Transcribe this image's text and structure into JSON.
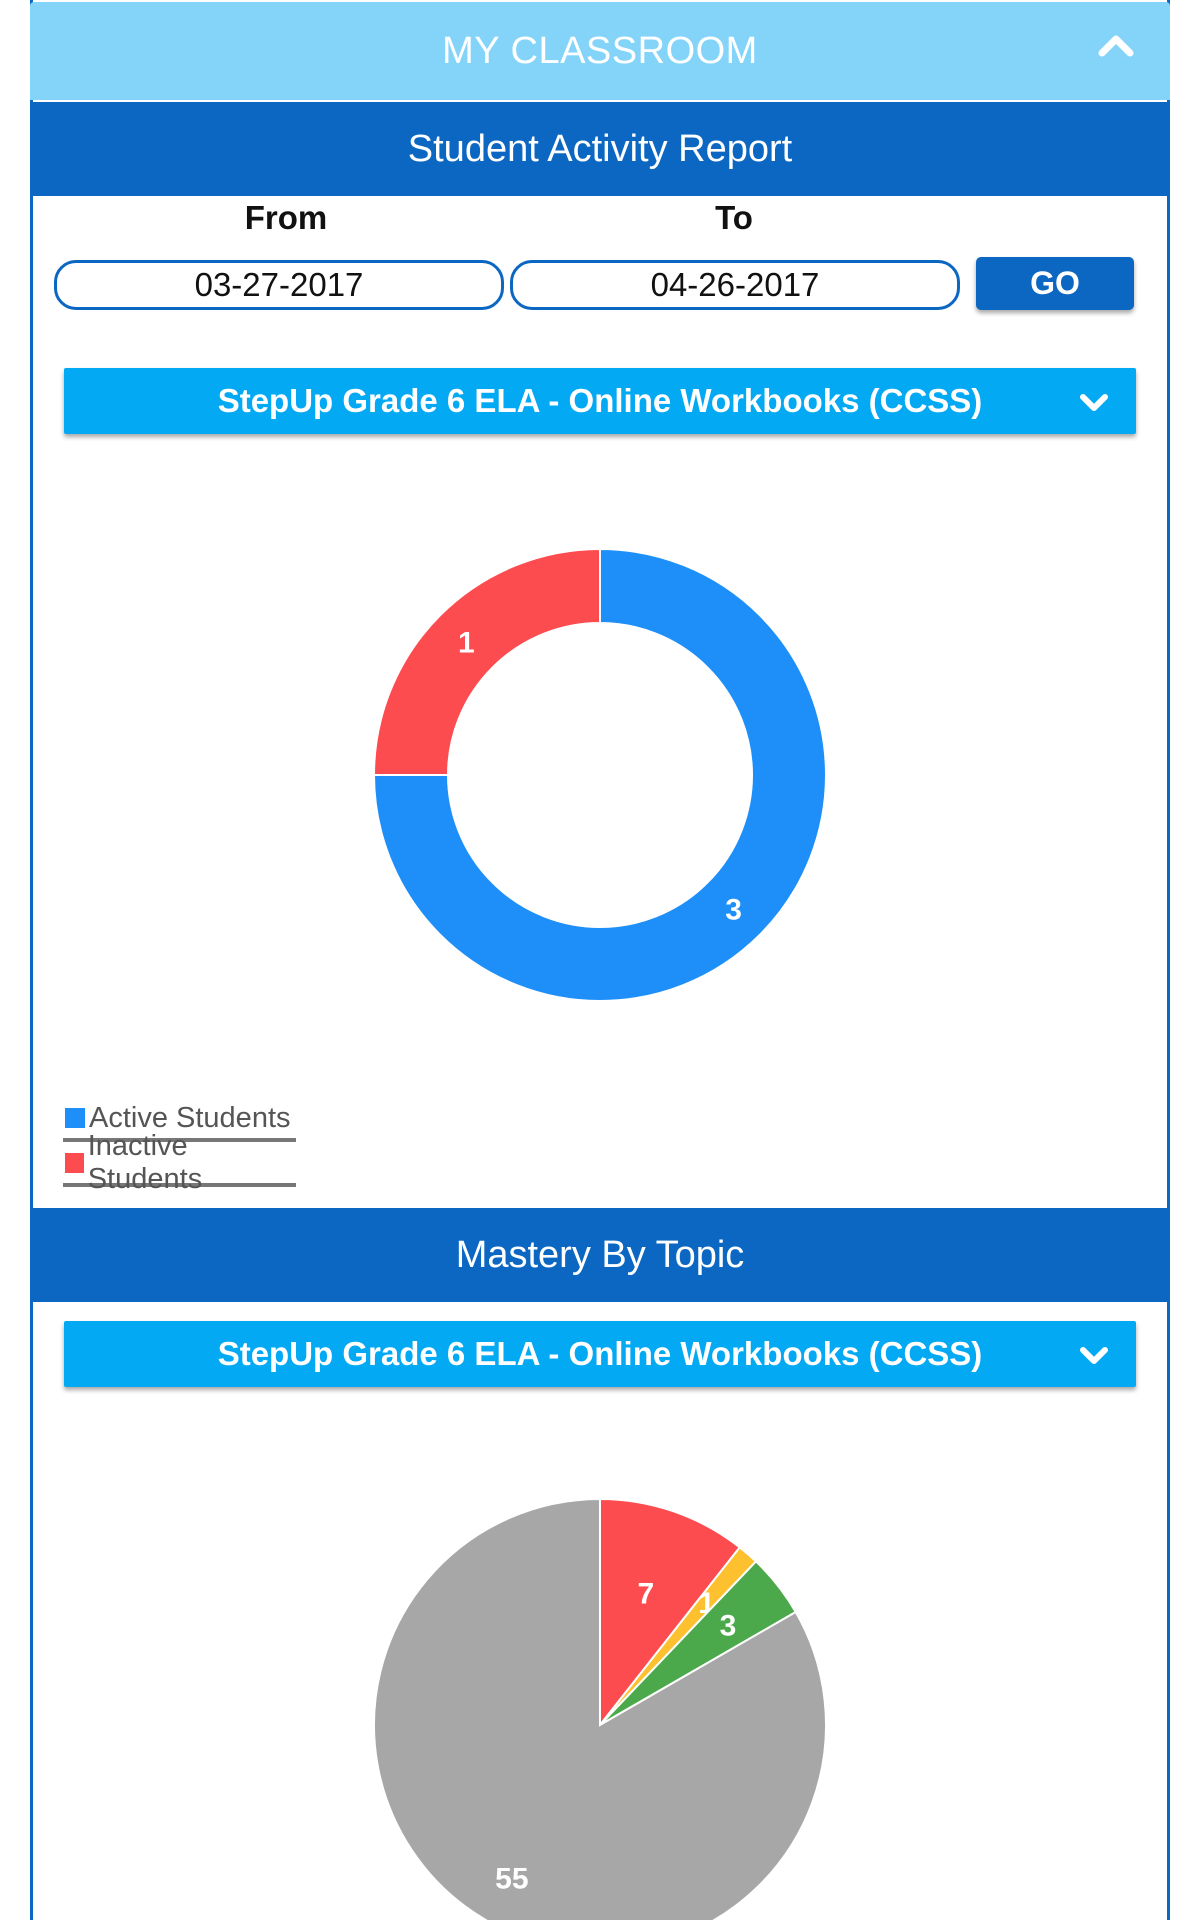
{
  "header": {
    "title": "MY CLASSROOM",
    "collapse_icon": "chevron-up-icon"
  },
  "activity_report": {
    "title": "Student Activity Report",
    "from_label": "From",
    "to_label": "To",
    "from_value": "03-27-2017",
    "to_value": "04-26-2017",
    "go_label": "GO",
    "course_select": "StepUp Grade 6 ELA - Online Workbooks (CCSS)"
  },
  "mastery": {
    "title": "Mastery By Topic",
    "course_select": "StepUp Grade 6 ELA - Online Workbooks (CCSS)"
  },
  "colors": {
    "blue": "#1e8ff8",
    "red": "#fd4c4f",
    "yellow": "#fdc02e",
    "green": "#4ba94b",
    "gray": "#a7a7a7"
  },
  "chart_data": [
    {
      "type": "donut",
      "title": "",
      "categories": [
        "Active Students",
        "Inactive Students"
      ],
      "values": [
        3,
        1
      ],
      "colors": [
        "#1e8ff8",
        "#fd4c4f"
      ],
      "legend": "bottom-left"
    },
    {
      "type": "pie",
      "title": "",
      "values": [
        7,
        1,
        3,
        55
      ],
      "colors": [
        "#fd4c4f",
        "#fdc02e",
        "#4ba94b",
        "#a7a7a7"
      ],
      "labels": [
        "7",
        "1",
        "3",
        "55"
      ]
    }
  ]
}
